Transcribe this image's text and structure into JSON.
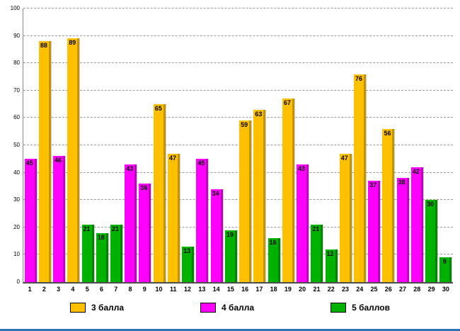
{
  "chart_data": {
    "type": "bar",
    "title": "",
    "xlabel": "",
    "ylabel": "",
    "ylim": [
      0,
      100
    ],
    "ytick_step": 10,
    "grid": "dashed-horizontal",
    "legend_position": "bottom",
    "bars": [
      {
        "category": "1",
        "value": 45,
        "series": "4 балла"
      },
      {
        "category": "2",
        "value": 88,
        "series": "3 балла"
      },
      {
        "category": "3",
        "value": 46,
        "series": "4 балла"
      },
      {
        "category": "4",
        "value": 89,
        "series": "3 балла"
      },
      {
        "category": "5",
        "value": 21,
        "series": "5 баллов"
      },
      {
        "category": "6",
        "value": 18,
        "series": "5 баллов"
      },
      {
        "category": "7",
        "value": 21,
        "series": "5 баллов"
      },
      {
        "category": "8",
        "value": 43,
        "series": "4 балла"
      },
      {
        "category": "9",
        "value": 36,
        "series": "4 балла"
      },
      {
        "category": "10",
        "value": 65,
        "series": "3 балла"
      },
      {
        "category": "11",
        "value": 47,
        "series": "3 балла"
      },
      {
        "category": "12",
        "value": 13,
        "series": "5 баллов"
      },
      {
        "category": "13",
        "value": 45,
        "series": "4 балла"
      },
      {
        "category": "14",
        "value": 34,
        "series": "4 балла"
      },
      {
        "category": "15",
        "value": 19,
        "series": "5 баллов"
      },
      {
        "category": "16",
        "value": 59,
        "series": "3 балла"
      },
      {
        "category": "17",
        "value": 63,
        "series": "3 балла"
      },
      {
        "category": "18",
        "value": 16,
        "series": "5 баллов"
      },
      {
        "category": "19",
        "value": 67,
        "series": "3 балла"
      },
      {
        "category": "20",
        "value": 43,
        "series": "4 балла"
      },
      {
        "category": "21",
        "value": 21,
        "series": "5 баллов"
      },
      {
        "category": "22",
        "value": 12,
        "series": "5 баллов"
      },
      {
        "category": "23",
        "value": 47,
        "series": "3 балла"
      },
      {
        "category": "24",
        "value": 76,
        "series": "3 балла"
      },
      {
        "category": "25",
        "value": 37,
        "series": "4 балла"
      },
      {
        "category": "26",
        "value": 56,
        "series": "3 балла"
      },
      {
        "category": "27",
        "value": 38,
        "series": "4 балла"
      },
      {
        "category": "28",
        "value": 42,
        "series": "4 балла"
      },
      {
        "category": "29",
        "value": 30,
        "series": "5 баллов"
      },
      {
        "category": "30",
        "value": 9,
        "series": "5 баллов"
      }
    ],
    "legend": [
      {
        "key": "3 балла",
        "label": "3 балла",
        "color": "#FFC000",
        "edge": "#C49300"
      },
      {
        "key": "4 балла",
        "label": "4 балла",
        "color": "#FF00FF",
        "edge": "#BE00BE"
      },
      {
        "key": "5 баллов",
        "label": "5 баллов",
        "color": "#00B200",
        "edge": "#008300"
      }
    ],
    "colors": {
      "grid": "#9a9a9a",
      "axis": "#4d4d4d",
      "value_label": "#000000",
      "bottom_rule": "#2E74B5"
    }
  }
}
